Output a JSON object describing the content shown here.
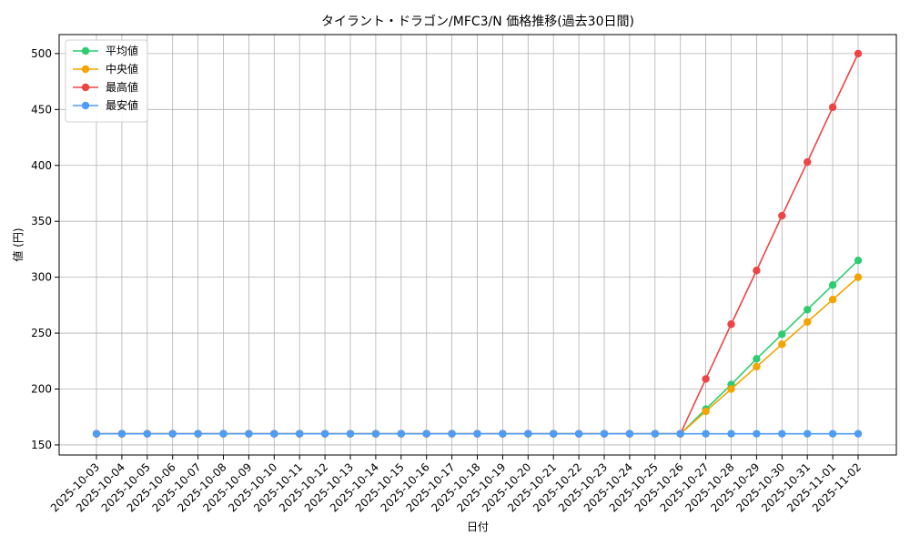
{
  "chart_data": {
    "type": "line",
    "title": "タイラント・ドラゴン/MFC3/N 価格推移(過去30日間)",
    "xlabel": "日付",
    "ylabel": "値 (円)",
    "ylim": [
      141,
      517
    ],
    "yticks": [
      150,
      200,
      250,
      300,
      350,
      400,
      450,
      500
    ],
    "grid": true,
    "legend_position": "top-left",
    "categories": [
      "2025-10-03",
      "2025-10-04",
      "2025-10-05",
      "2025-10-06",
      "2025-10-07",
      "2025-10-08",
      "2025-10-09",
      "2025-10-10",
      "2025-10-11",
      "2025-10-12",
      "2025-10-13",
      "2025-10-14",
      "2025-10-15",
      "2025-10-16",
      "2025-10-17",
      "2025-10-18",
      "2025-10-19",
      "2025-10-20",
      "2025-10-21",
      "2025-10-22",
      "2025-10-23",
      "2025-10-24",
      "2025-10-25",
      "2025-10-26",
      "2025-10-27",
      "2025-10-28",
      "2025-10-29",
      "2025-10-30",
      "2025-10-31",
      "2025-11-01",
      "2025-11-02"
    ],
    "series": [
      {
        "name": "平均値",
        "color": "#2ecc71",
        "values": [
          160,
          160,
          160,
          160,
          160,
          160,
          160,
          160,
          160,
          160,
          160,
          160,
          160,
          160,
          160,
          160,
          160,
          160,
          160,
          160,
          160,
          160,
          160,
          160,
          182,
          204,
          227,
          249,
          271,
          293,
          315
        ]
      },
      {
        "name": "中央値",
        "color": "#f5a300",
        "values": [
          160,
          160,
          160,
          160,
          160,
          160,
          160,
          160,
          160,
          160,
          160,
          160,
          160,
          160,
          160,
          160,
          160,
          160,
          160,
          160,
          160,
          160,
          160,
          160,
          180,
          200,
          220,
          240,
          260,
          280,
          300
        ]
      },
      {
        "name": "最高値",
        "color": "#ef4444",
        "values": [
          160,
          160,
          160,
          160,
          160,
          160,
          160,
          160,
          160,
          160,
          160,
          160,
          160,
          160,
          160,
          160,
          160,
          160,
          160,
          160,
          160,
          160,
          160,
          160,
          209,
          258,
          306,
          355,
          403,
          452,
          500
        ]
      },
      {
        "name": "最安値",
        "color": "#4f9cf5",
        "values": [
          160,
          160,
          160,
          160,
          160,
          160,
          160,
          160,
          160,
          160,
          160,
          160,
          160,
          160,
          160,
          160,
          160,
          160,
          160,
          160,
          160,
          160,
          160,
          160,
          160,
          160,
          160,
          160,
          160,
          160,
          160
        ]
      }
    ]
  }
}
